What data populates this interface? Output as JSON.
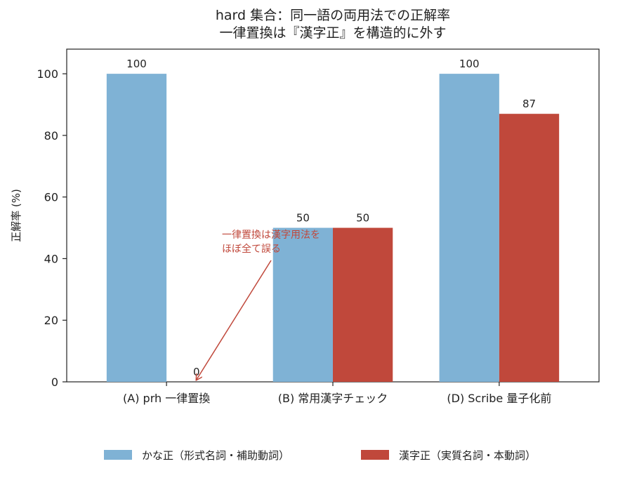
{
  "chart_data": {
    "type": "bar",
    "title_lines": [
      "hard 集合：同一語の両用法での正解率",
      "一律置換は『漢字正』を構造的に外す"
    ],
    "ylabel": "正解率 (%)",
    "xlabel": "",
    "ylim": [
      0,
      108
    ],
    "yticks": [
      0,
      20,
      40,
      60,
      80,
      100
    ],
    "categories": [
      "(A) prh 一律置換",
      "(B) 常用漢字チェック",
      "(D) Scribe 量子化前"
    ],
    "series": [
      {
        "name": "かな正（形式名詞・補助動詞）",
        "values": [
          100,
          50,
          100
        ],
        "color": "#7fb2d5"
      },
      {
        "name": "漢字正（実質名詞・本動詞）",
        "values": [
          0,
          50,
          87
        ],
        "color": "#c0483b"
      }
    ],
    "data_labels": [
      [
        "100",
        "50",
        "100"
      ],
      [
        "0",
        "50",
        "87"
      ]
    ],
    "annotation": {
      "lines": [
        "一律置換は漢字用法を",
        "ほぼ全て誤る"
      ],
      "color": "#c0483b",
      "points_to": {
        "category": 0,
        "series": 1,
        "value": 0
      }
    },
    "grid": false,
    "legend_position": "bottom-center"
  }
}
